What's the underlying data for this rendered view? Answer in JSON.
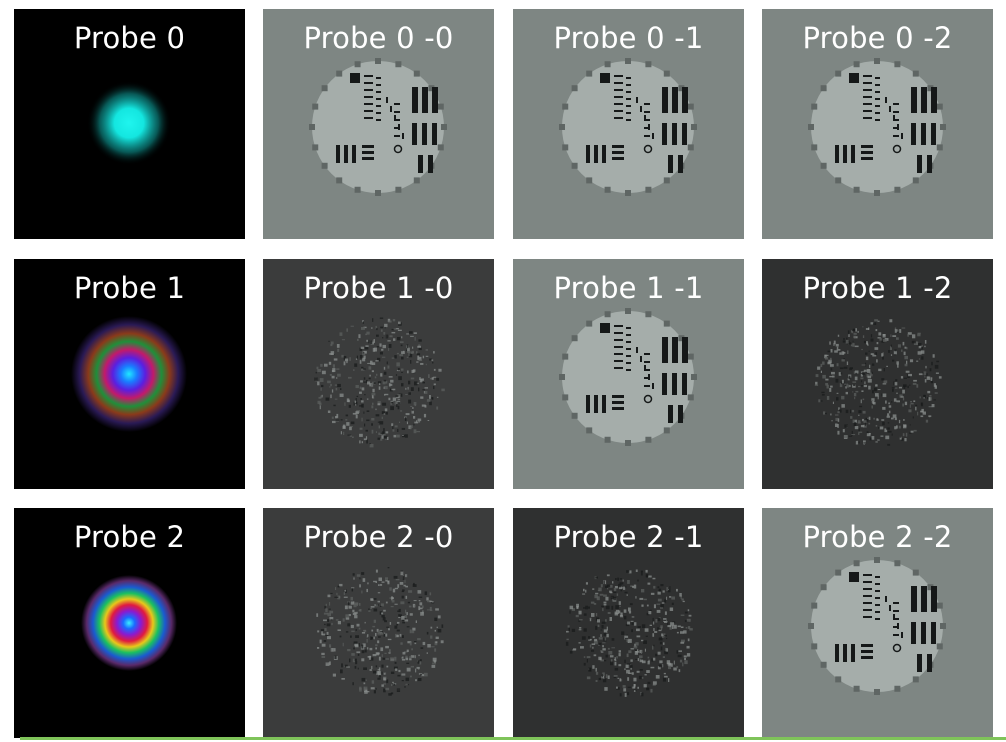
{
  "labels": [
    [
      "Probe 0",
      "Probe 0 -0",
      "Probe 0 -1",
      "Probe 0 -2"
    ],
    [
      "Probe 1",
      "Probe 1 -0",
      "Probe 1 -1",
      "Probe 1 -2"
    ],
    [
      "Probe 2",
      "Probe 2 -0",
      "Probe 2 -1",
      "Probe 2 -2"
    ]
  ],
  "panel_types": [
    [
      "probe-0",
      "target",
      "target",
      "target"
    ],
    [
      "probe-1",
      "noise",
      "target",
      "noise"
    ],
    [
      "probe-2",
      "noise",
      "noise",
      "target"
    ]
  ],
  "colors": {
    "probe_bg": "#000000",
    "target_bg": "#7e8683",
    "target_disk": "#a5adaa",
    "noise_bg": "#3b3c3c",
    "noise_dark_bg": "#2f3030",
    "separator": "#7fc45a"
  }
}
